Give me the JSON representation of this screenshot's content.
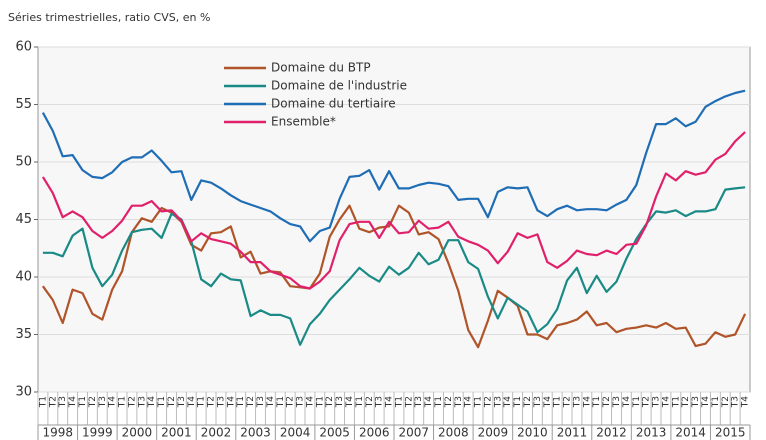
{
  "chart_data": {
    "type": "line",
    "subtitle": "Séries trimestrielles, ratio CVS, en %",
    "categories": [
      "T1",
      "T2",
      "T3",
      "T4",
      "T1",
      "T2",
      "T3",
      "T4",
      "T1",
      "T2",
      "T3",
      "T4",
      "T1",
      "T2",
      "T3",
      "T4",
      "T1",
      "T2",
      "T3",
      "T4",
      "T1",
      "T2",
      "T3",
      "T4",
      "T1",
      "T2",
      "T3",
      "T4",
      "T1",
      "T2",
      "T3",
      "T4",
      "T1",
      "T2",
      "T3",
      "T4",
      "T1",
      "T2",
      "T3",
      "T4",
      "T1",
      "T2",
      "T3",
      "T4",
      "T1",
      "T2",
      "T3",
      "T4",
      "T1",
      "T2",
      "T3",
      "T4",
      "T1",
      "T2",
      "T3",
      "T4",
      "T1",
      "T2",
      "T3",
      "T4",
      "T1",
      "T2",
      "T3",
      "T4",
      "T1",
      "T2",
      "T3",
      "T4",
      "T1",
      "T2",
      "T3",
      "T4"
    ],
    "year_labels": [
      "1998",
      "1999",
      "2000",
      "2001",
      "2002",
      "2003",
      "2004",
      "2005",
      "2006",
      "2007",
      "2008",
      "2009",
      "2010",
      "2011",
      "2012",
      "2013",
      "2014",
      "2015"
    ],
    "ylim": [
      30,
      60
    ],
    "yticks": [
      30,
      35,
      40,
      45,
      50,
      55,
      60
    ],
    "grid": true,
    "legend": "upper center",
    "series": [
      {
        "name": "Domaine du BTP",
        "color": "#b0542a",
        "values": [
          39.2,
          38.0,
          36.0,
          38.9,
          38.6,
          36.8,
          36.3,
          38.9,
          40.5,
          43.9,
          45.1,
          44.8,
          46.0,
          45.6,
          44.8,
          42.8,
          42.3,
          43.8,
          43.9,
          44.4,
          41.7,
          42.2,
          40.3,
          40.5,
          40.4,
          39.2,
          39.1,
          39.0,
          40.3,
          43.5,
          45.0,
          46.2,
          44.2,
          43.9,
          44.3,
          44.4,
          46.2,
          45.6,
          43.7,
          43.9,
          43.3,
          41.2,
          38.8,
          35.4,
          33.9,
          36.2,
          38.8,
          38.2,
          37.5,
          35.0,
          35.0,
          34.6,
          35.8,
          36.0,
          36.3,
          37.0,
          35.8,
          36.0,
          35.2,
          35.5,
          35.6,
          35.8,
          35.6,
          36.0,
          35.5,
          35.6,
          34.0,
          34.2,
          35.2,
          34.8,
          35.0,
          36.8
        ]
      },
      {
        "name": "Domaine de l'industrie",
        "color": "#1a8a86",
        "values": [
          42.1,
          42.1,
          41.8,
          43.6,
          44.2,
          40.8,
          39.2,
          40.2,
          42.3,
          43.9,
          44.1,
          44.2,
          43.4,
          45.5,
          45.0,
          43.1,
          39.8,
          39.2,
          40.3,
          39.8,
          39.7,
          36.6,
          37.1,
          36.7,
          36.7,
          36.4,
          34.1,
          35.9,
          36.8,
          38.0,
          38.9,
          39.8,
          40.8,
          40.1,
          39.6,
          40.9,
          40.2,
          40.8,
          42.1,
          41.1,
          41.5,
          43.2,
          43.2,
          41.3,
          40.7,
          38.3,
          36.4,
          38.2,
          37.6,
          37.0,
          35.2,
          35.9,
          37.2,
          39.7,
          40.8,
          38.6,
          40.1,
          38.7,
          39.6,
          41.6,
          43.3,
          44.6,
          45.7,
          45.6,
          45.8,
          45.3,
          45.7,
          45.7,
          45.9,
          47.6,
          47.7,
          47.8
        ]
      },
      {
        "name": "Domaine du tertiaire",
        "color": "#1f6db5",
        "values": [
          54.3,
          52.7,
          50.5,
          50.6,
          49.3,
          48.7,
          48.6,
          49.1,
          50.0,
          50.4,
          50.4,
          51.0,
          50.1,
          49.1,
          49.2,
          46.7,
          48.4,
          48.2,
          47.7,
          47.1,
          46.6,
          46.3,
          46.0,
          45.7,
          45.1,
          44.6,
          44.4,
          43.1,
          44.0,
          44.3,
          46.8,
          48.7,
          48.8,
          49.3,
          47.6,
          49.2,
          47.7,
          47.7,
          48.0,
          48.2,
          48.1,
          47.9,
          46.7,
          46.8,
          46.8,
          45.2,
          47.4,
          47.8,
          47.7,
          47.8,
          45.8,
          45.3,
          45.9,
          46.2,
          45.8,
          45.9,
          45.9,
          45.8,
          46.3,
          46.7,
          48.0,
          50.8,
          53.3,
          53.3,
          53.8,
          53.1,
          53.5,
          54.8,
          55.3,
          55.7,
          56.0,
          56.2
        ]
      },
      {
        "name": "Ensemble*",
        "color": "#e0206a",
        "values": [
          48.7,
          47.3,
          45.2,
          45.7,
          45.2,
          44.0,
          43.4,
          44.0,
          44.9,
          46.2,
          46.2,
          46.6,
          45.7,
          45.8,
          44.9,
          43.1,
          43.8,
          43.3,
          43.1,
          42.9,
          42.2,
          41.3,
          41.3,
          40.5,
          40.2,
          39.9,
          39.2,
          39.0,
          39.6,
          40.5,
          43.2,
          44.6,
          44.8,
          44.8,
          43.4,
          44.8,
          43.8,
          43.9,
          44.9,
          44.2,
          44.3,
          44.8,
          43.5,
          43.1,
          42.8,
          42.3,
          41.2,
          42.2,
          43.8,
          43.4,
          43.7,
          41.3,
          40.8,
          41.4,
          42.3,
          42.0,
          41.9,
          42.3,
          42.0,
          42.8,
          42.9,
          44.5,
          47.0,
          49.0,
          48.4,
          49.2,
          48.9,
          49.1,
          50.2,
          50.7,
          51.8,
          52.6
        ]
      }
    ]
  }
}
